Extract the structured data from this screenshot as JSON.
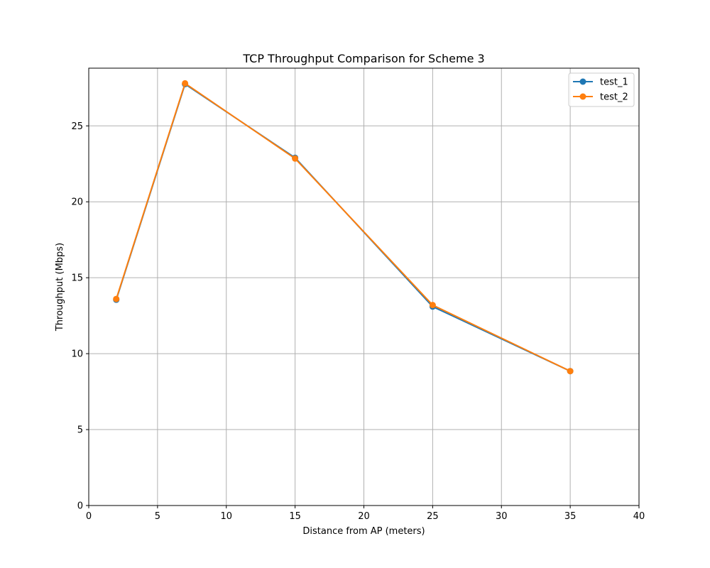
{
  "chart_data": {
    "type": "line",
    "title": "TCP Throughput Comparison for Scheme 3",
    "xlabel": "Distance from AP (meters)",
    "ylabel": "Throughput (Mbps)",
    "xlim": [
      0,
      40
    ],
    "ylim": [
      0,
      28.8
    ],
    "xticks": [
      0,
      5,
      10,
      15,
      20,
      25,
      30,
      35,
      40
    ],
    "yticks": [
      0,
      5,
      10,
      15,
      20,
      25
    ],
    "grid": true,
    "legend_position": "top-right",
    "x": [
      2,
      7,
      15,
      25,
      35
    ],
    "series": [
      {
        "name": "test_1",
        "color": "#1f77b4",
        "values": [
          13.55,
          27.75,
          22.9,
          13.1,
          8.85
        ]
      },
      {
        "name": "test_2",
        "color": "#ff7f0e",
        "values": [
          13.6,
          27.8,
          22.85,
          13.2,
          8.85
        ]
      }
    ]
  }
}
